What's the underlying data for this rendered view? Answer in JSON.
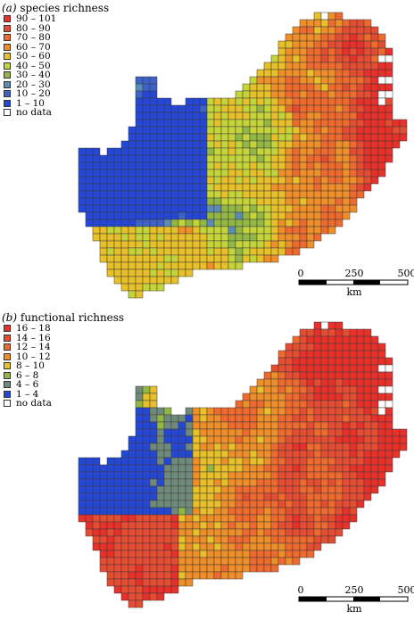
{
  "panels": [
    {
      "id": "a",
      "letter": "(a)",
      "title": "species richness",
      "legend": [
        {
          "label": "90 – 101",
          "color": "#e8312b"
        },
        {
          "label": "80 – 90",
          "color": "#e44d31"
        },
        {
          "label": "70 – 80",
          "color": "#ee6a2f"
        },
        {
          "label": "60 – 70",
          "color": "#ef8f2a"
        },
        {
          "label": "50 – 60",
          "color": "#e8c02a"
        },
        {
          "label": "40 – 50",
          "color": "#c4d43a"
        },
        {
          "label": "30 – 40",
          "color": "#93b744"
        },
        {
          "label": "20 – 30",
          "color": "#5c8cb6"
        },
        {
          "label": "10 – 20",
          "color": "#3d62c8"
        },
        {
          "label": "1 – 10",
          "color": "#2447d6"
        },
        {
          "label": "no data",
          "color": "#ffffff"
        }
      ],
      "scale": {
        "ticks": [
          "0",
          "250",
          "500"
        ],
        "unit": "km"
      }
    },
    {
      "id": "b",
      "letter": "(b)",
      "title": "functional richness",
      "legend": [
        {
          "label": "16 – 18",
          "color": "#e8312b"
        },
        {
          "label": "14 – 16",
          "color": "#e44d31"
        },
        {
          "label": "12 – 14",
          "color": "#ee6a2f"
        },
        {
          "label": "10 – 12",
          "color": "#ef8f2a"
        },
        {
          "label": "8 – 10",
          "color": "#e8c02a"
        },
        {
          "label": "6 – 8",
          "color": "#93b744"
        },
        {
          "label": "4 – 6",
          "color": "#6f8a7a"
        },
        {
          "label": "1 – 4",
          "color": "#2447d6"
        },
        {
          "label": "no data",
          "color": "#ffffff"
        }
      ],
      "scale": {
        "ticks": [
          "0",
          "250",
          "500"
        ],
        "unit": "km"
      }
    }
  ]
}
